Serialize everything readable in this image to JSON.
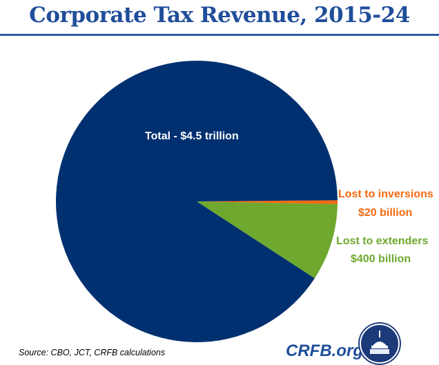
{
  "chart_data": {
    "type": "pie",
    "title": "Corporate Tax Revenue, 2015-24",
    "slices": [
      {
        "name": "Total",
        "value": 4080,
        "label": "Total  - $4.5 trillion",
        "color": "#003070"
      },
      {
        "name": "Lost to inversions",
        "value": 20,
        "label": "Lost to inversions",
        "value_label": "$20 billion",
        "color": "#f26a10"
      },
      {
        "name": "Lost to extenders",
        "value": 400,
        "label": "Lost to extenders",
        "value_label": "$400 billion",
        "color": "#6ea82e"
      }
    ],
    "units": "billions of dollars"
  },
  "source": "Source: CBO, JCT, CRFB calculations",
  "brand": "CRFB.org"
}
